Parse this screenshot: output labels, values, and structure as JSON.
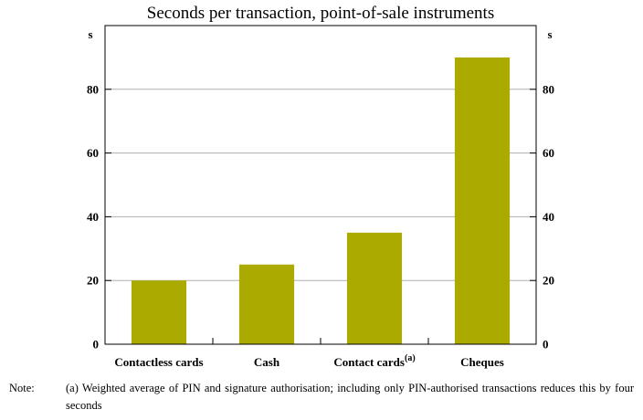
{
  "chart_data": {
    "type": "bar",
    "title": "Seconds per transaction, point-of-sale instruments",
    "ylabel_left": "s",
    "ylabel_right": "s",
    "ylim": [
      0,
      100
    ],
    "yticks": [
      0,
      20,
      40,
      60,
      80
    ],
    "grid": true,
    "categories": [
      "Contactless cards",
      "Cash",
      "Contact cards",
      "Cheques"
    ],
    "category_superscripts": [
      "",
      "",
      "(a)",
      ""
    ],
    "values": [
      20,
      25,
      35,
      90
    ],
    "bar_color": "#aaaa00"
  },
  "note": {
    "label": "Note:",
    "text": "(a) Weighted average of PIN and signature authorisation; including only PIN-authorised transactions reduces this by four seconds"
  }
}
